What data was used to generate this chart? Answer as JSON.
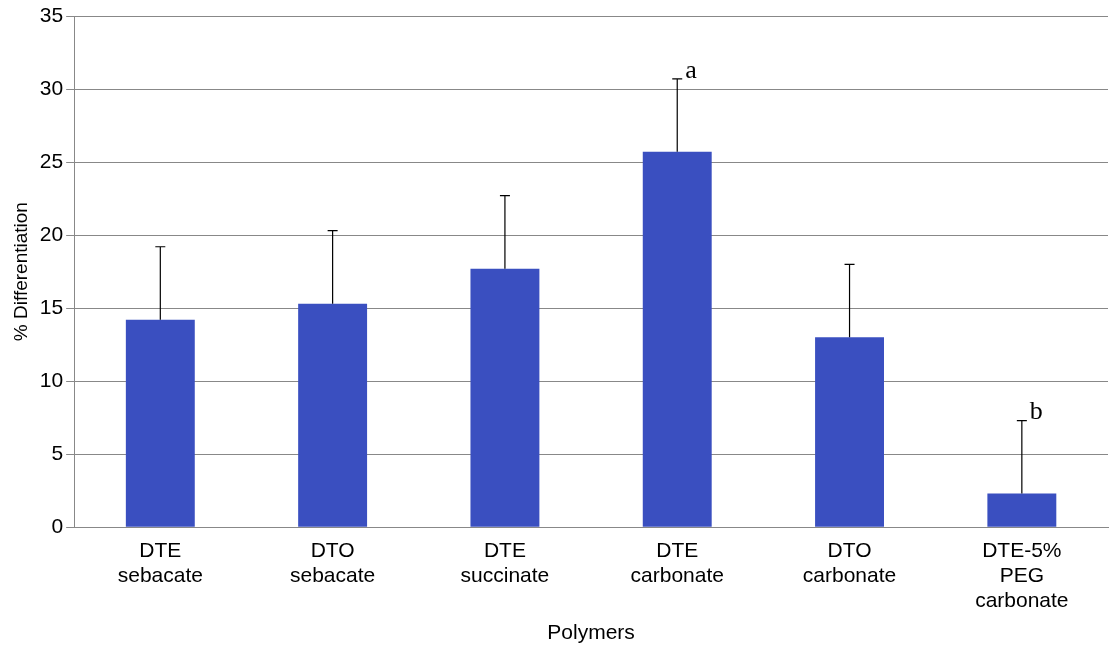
{
  "chart_data": {
    "type": "bar",
    "xlabel": "Polymers",
    "ylabel": "% Differentiation",
    "categories": [
      "DTE sebacate",
      "DTO sebacate",
      "DTE succinate",
      "DTE carbonate",
      "DTO carbonate",
      "DTE-5% PEG carbonate"
    ],
    "values": [
      14.2,
      15.3,
      17.7,
      25.7,
      13.0,
      2.3
    ],
    "errors": [
      [
        14.2,
        19.2
      ],
      [
        15.3,
        20.3
      ],
      [
        17.7,
        22.7
      ],
      [
        25.7,
        30.7
      ],
      [
        13.0,
        18.0
      ],
      [
        2.3,
        7.3
      ]
    ],
    "color": "#3a4fc0",
    "ylim": [
      0,
      35
    ],
    "yticks": [
      0,
      5,
      10,
      15,
      20,
      25,
      30,
      35
    ],
    "grid": "y",
    "legend": false,
    "annotations": [
      {
        "text": "a",
        "x": "DTE carbonate",
        "y": 30.7
      },
      {
        "text": "b",
        "x": "DTE-5% PEG carbonate",
        "y": 7.3
      }
    ]
  }
}
